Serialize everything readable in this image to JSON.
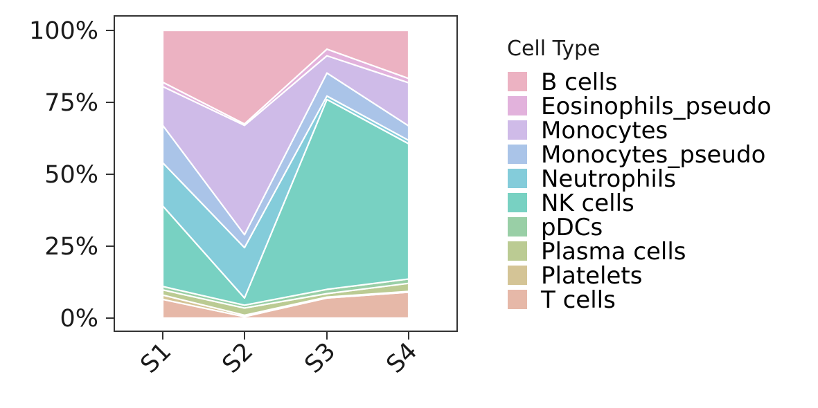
{
  "chart_data": {
    "type": "area",
    "stacked": true,
    "normalized": true,
    "categories": [
      "S1",
      "S2",
      "S3",
      "S4"
    ],
    "ylim": [
      0,
      1
    ],
    "y_ticks": [
      "0%",
      "25%",
      "50%",
      "75%",
      "100%"
    ],
    "grid": false,
    "legend": {
      "title": "Cell Type",
      "position": "right"
    },
    "series": [
      {
        "name": "T cells",
        "color": "#E6B8A8",
        "values": [
          0.065,
          0.005,
          0.07,
          0.09
        ]
      },
      {
        "name": "Platelets",
        "color": "#D4C496",
        "values": [
          0.015,
          0.005,
          0.003,
          0.003
        ]
      },
      {
        "name": "Plasma cells",
        "color": "#BBCB93",
        "values": [
          0.018,
          0.025,
          0.012,
          0.028
        ]
      },
      {
        "name": "pDCs",
        "color": "#99CFA6",
        "values": [
          0.012,
          0.01,
          0.015,
          0.015
        ]
      },
      {
        "name": "NK cells",
        "color": "#78D1C2",
        "values": [
          0.28,
          0.025,
          0.66,
          0.47
        ]
      },
      {
        "name": "Neutrophils",
        "color": "#84CCDA",
        "values": [
          0.15,
          0.175,
          0.012,
          0.012
        ]
      },
      {
        "name": "Monocytes_pseudo",
        "color": "#AAC4E8",
        "values": [
          0.13,
          0.045,
          0.08,
          0.05
        ]
      },
      {
        "name": "Monocytes",
        "color": "#CFBBE8",
        "values": [
          0.135,
          0.38,
          0.06,
          0.15
        ]
      },
      {
        "name": "Eosinophils_pseudo",
        "color": "#E2B2DC",
        "values": [
          0.015,
          0.005,
          0.023,
          0.015
        ]
      },
      {
        "name": "B cells",
        "color": "#ECB2C2",
        "values": [
          0.18,
          0.325,
          0.065,
          0.167
        ]
      }
    ]
  }
}
